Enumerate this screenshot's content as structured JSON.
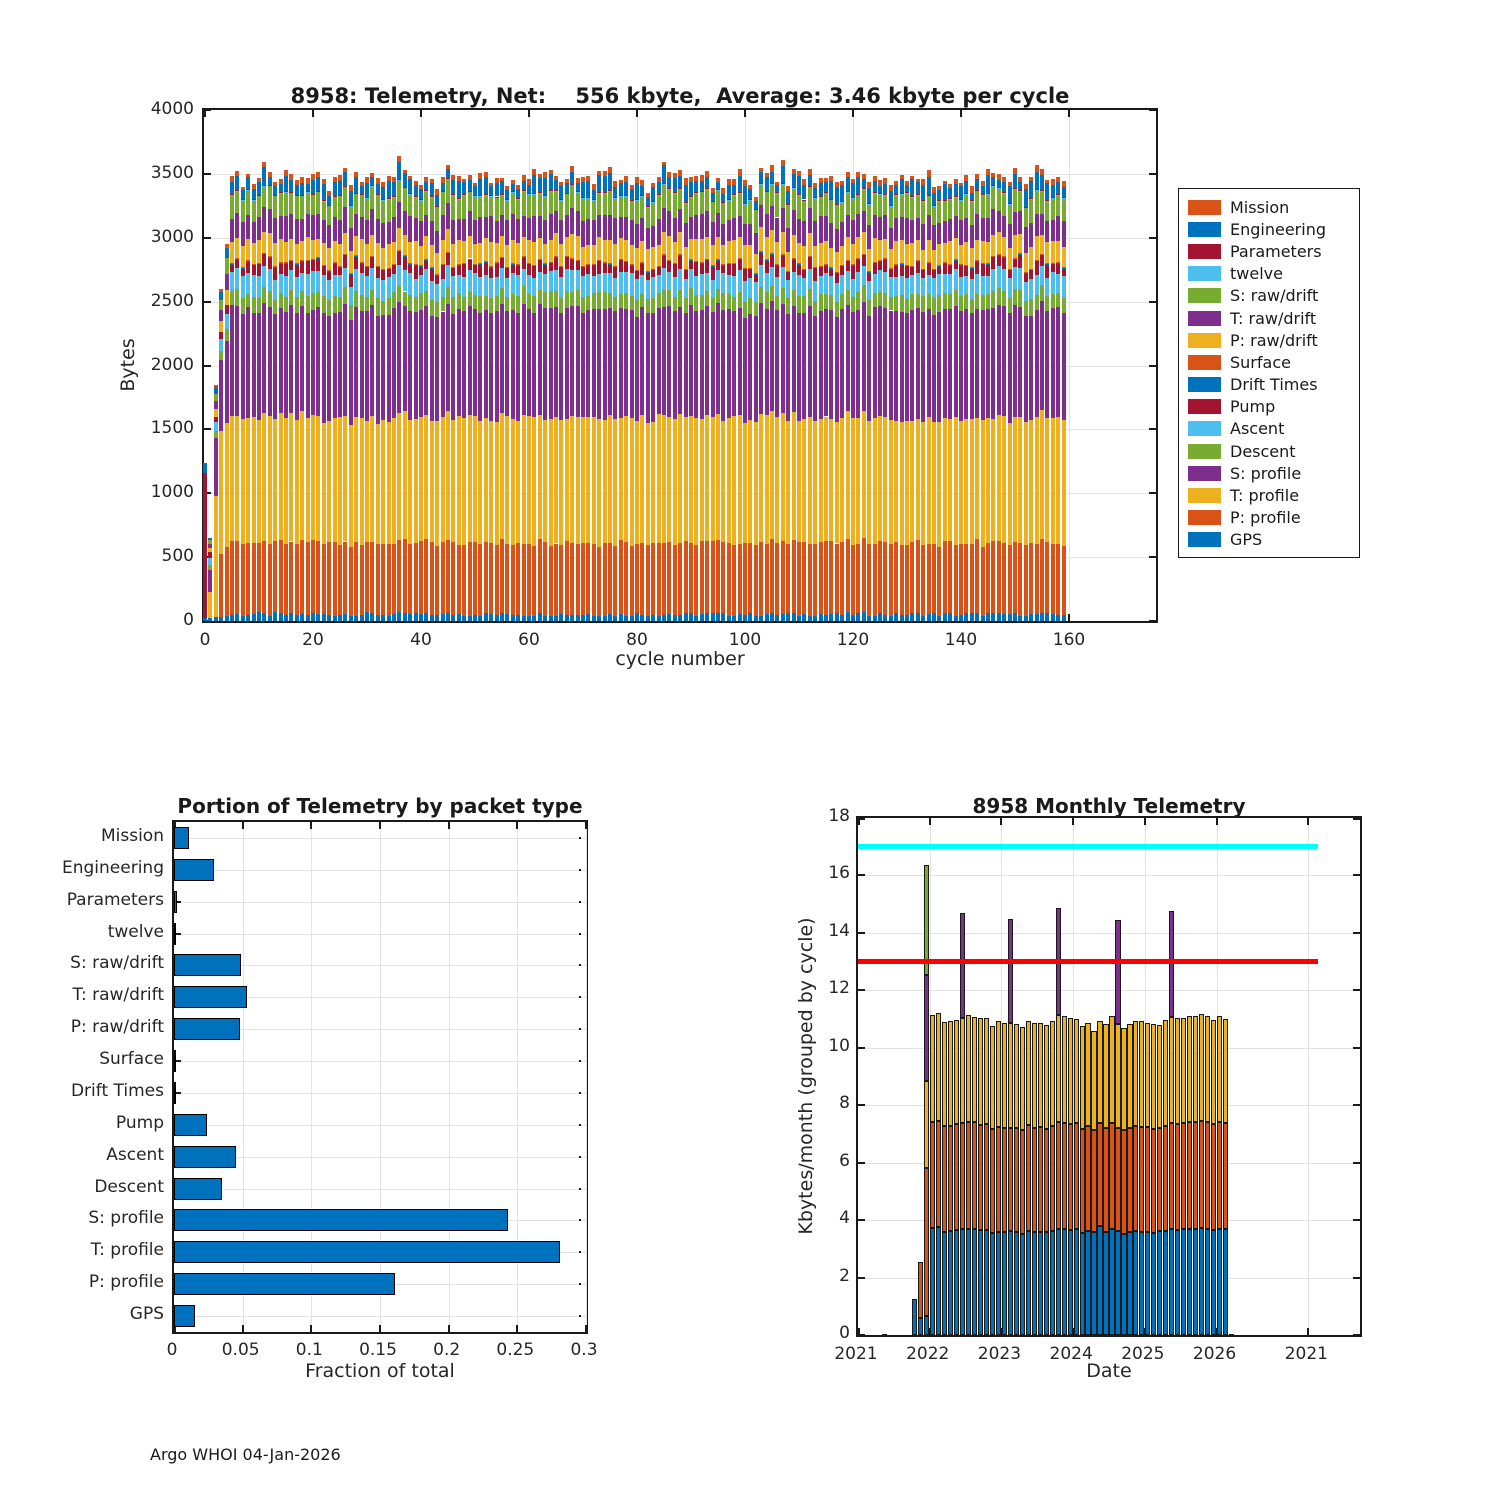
{
  "page": {
    "footer": "Argo WHOI 04-Jan-2026",
    "background": "#FFFFFF"
  },
  "palette": {
    "blue": "#0072BD",
    "orange": "#D95319",
    "yellow": "#EDB120",
    "purple": "#7E2F8E",
    "green": "#77AC30",
    "lightblue": "#4DBEEE",
    "darkred": "#A2142F",
    "cyan_line": "#00FFFF",
    "red_line": "#FF0000",
    "grid": "#E3E3E3",
    "axis": "#1A1A1A",
    "tick_text": "#262626"
  },
  "chart_data": [
    {
      "id": "telemetry-by-cycle",
      "type": "stacked-bar",
      "title": "8958: Telemetry, Net:    556 kbyte,  Average: 3.46 kbyte per cycle",
      "xlabel": "cycle number",
      "ylabel": "Bytes",
      "xlim": [
        0,
        176
      ],
      "ylim": [
        0,
        4000
      ],
      "xticks": [
        0,
        20,
        40,
        60,
        80,
        100,
        120,
        140,
        160
      ],
      "yticks": [
        0,
        500,
        1000,
        1500,
        2000,
        2500,
        3000,
        3500,
        4000
      ],
      "grid": true,
      "n_cycles": 160,
      "legend_top_to_bottom": [
        {
          "label": "Mission",
          "color": "#D95319"
        },
        {
          "label": "Engineering",
          "color": "#0072BD"
        },
        {
          "label": "Parameters",
          "color": "#A2142F"
        },
        {
          "label": "twelve",
          "color": "#4DBEEE"
        },
        {
          "label": "S: raw/drift",
          "color": "#77AC30"
        },
        {
          "label": "T: raw/drift",
          "color": "#7E2F8E"
        },
        {
          "label": "P: raw/drift",
          "color": "#EDB120"
        },
        {
          "label": "Surface",
          "color": "#D95319"
        },
        {
          "label": "Drift Times",
          "color": "#0072BD"
        },
        {
          "label": "Pump",
          "color": "#A2142F"
        },
        {
          "label": "Ascent",
          "color": "#4DBEEE"
        },
        {
          "label": "Descent",
          "color": "#77AC30"
        },
        {
          "label": "S: profile",
          "color": "#7E2F8E"
        },
        {
          "label": "T: profile",
          "color": "#EDB120"
        },
        {
          "label": "P: profile",
          "color": "#D95319"
        },
        {
          "label": "GPS",
          "color": "#0072BD"
        }
      ],
      "stack_bottom_to_top": [
        "GPS",
        "P: profile",
        "T: profile",
        "S: profile",
        "Descent",
        "Ascent",
        "Pump",
        "Drift Times",
        "Surface",
        "P: raw/drift",
        "T: raw/drift",
        "S: raw/drift",
        "twelve",
        "Parameters",
        "Engineering",
        "Mission"
      ],
      "mean_bytes_per_cycle": {
        "GPS": 52,
        "P: profile": 560,
        "T: profile": 977,
        "S: profile": 844,
        "Descent": 122,
        "Ascent": 156,
        "Pump": 83,
        "Drift Times": 4,
        "Surface": 4,
        "P: raw/drift": 167,
        "T: raw/drift": 184,
        "S: raw/drift": 170,
        "twelve": 2,
        "Parameters": 6,
        "Engineering": 101,
        "Mission": 38
      },
      "initial_cycles": [
        {
          "GPS": 25,
          "Parameters": 1130,
          "Engineering": 80
        },
        {
          "GPS": 20,
          "T: profile": 210,
          "S: profile": 170,
          "Descent": 35,
          "Ascent": 60,
          "Pump": 45,
          "P: raw/drift": 30,
          "T: raw/drift": 35,
          "S: raw/drift": 30,
          "Engineering": 15
        },
        {
          "GPS": 30,
          "T: profile": 950,
          "S: profile": 450,
          "Descent": 55,
          "Ascent": 70,
          "Pump": 45,
          "P: raw/drift": 60,
          "T: raw/drift": 65,
          "S: raw/drift": 55,
          "Engineering": 50,
          "Mission": 20
        },
        {
          "GPS": 35,
          "P: profile": 490,
          "T: profile": 960,
          "S: profile": 560,
          "Descent": 70,
          "Ascent": 90,
          "Pump": 55,
          "P: raw/drift": 85,
          "T: raw/drift": 90,
          "S: raw/drift": 80,
          "Engineering": 60,
          "Mission": 25
        },
        {
          "GPS": 40,
          "P: profile": 540,
          "T: profile": 970,
          "S: profile": 640,
          "Descent": 95,
          "Ascent": 120,
          "Pump": 65,
          "P: raw/drift": 120,
          "T: raw/drift": 130,
          "S: raw/drift": 120,
          "Engineering": 80,
          "Mission": 30
        }
      ]
    },
    {
      "id": "portion-by-packet-type",
      "type": "bar-horizontal",
      "title": "Portion of Telemetry by packet type",
      "xlabel": "Fraction of total",
      "categories": [
        "Mission",
        "Engineering",
        "Parameters",
        "twelve",
        "S: raw/drift",
        "T: raw/drift",
        "P: raw/drift",
        "Surface",
        "Drift Times",
        "Pump",
        "Ascent",
        "Descent",
        "S: profile",
        "T: profile",
        "P: profile",
        "GPS"
      ],
      "values": [
        0.011,
        0.029,
        0.002,
        0.0005,
        0.049,
        0.053,
        0.048,
        0.001,
        0.001,
        0.024,
        0.045,
        0.035,
        0.243,
        0.281,
        0.161,
        0.015
      ],
      "xlim": [
        0,
        0.3
      ],
      "xticks": [
        0,
        0.05,
        0.1,
        0.15,
        0.2,
        0.25,
        0.3
      ],
      "xtick_labels": [
        "0",
        "0.05",
        "0.1",
        "0.15",
        "0.2",
        "0.25",
        "0.3"
      ],
      "bar_color": "#0072BD",
      "grid": true
    },
    {
      "id": "monthly-telemetry",
      "type": "stacked-bar",
      "title": "8958 Monthly Telemetry",
      "xlabel": "Date",
      "ylabel": "Kbytes/month (grouped by cycle)",
      "ylim": [
        0,
        18
      ],
      "yticks": [
        0,
        2,
        4,
        6,
        8,
        10,
        12,
        14,
        16,
        18
      ],
      "xticks": [
        {
          "label": "2021",
          "year": 2021
        },
        {
          "label": "2022",
          "year": 2022
        },
        {
          "label": "2023",
          "year": 2023
        },
        {
          "label": "2024",
          "year": 2024
        },
        {
          "label": "2025",
          "year": 2025
        },
        {
          "label": "2026",
          "year": 2026
        },
        {
          "label": "2021",
          "year": 2027.28
        }
      ],
      "xlim_years": [
        2021,
        2028
      ],
      "grid": true,
      "segment_color_cycle": [
        "#0072BD",
        "#D95319",
        "#EDB120",
        "#7E2F8E",
        "#77AC30"
      ],
      "hlines": [
        {
          "y": 17,
          "color": "#00FFFF",
          "from_year": 2021,
          "to_year": 2027.42
        },
        {
          "y": 13,
          "color": "#FF0000",
          "from_year": 2021,
          "to_year": 2027.42
        }
      ],
      "months": [
        {
          "d": "2021-05",
          "c": [
            0.03
          ]
        },
        {
          "d": "2021-10",
          "c": [
            1.25
          ]
        },
        {
          "d": "2021-11",
          "c": [
            0.6,
            1.95
          ]
        },
        {
          "d": "2021-12",
          "c": [
            0.65,
            5.15,
            3.05,
            3.7,
            3.8
          ]
        },
        {
          "d": "2022-01",
          "c": [
            3.72,
            3.7,
            3.73
          ]
        },
        {
          "d": "2022-02",
          "c": [
            3.75,
            3.7,
            3.75
          ]
        },
        {
          "d": "2022-03",
          "c": [
            3.6,
            3.68,
            3.62
          ]
        },
        {
          "d": "2022-04",
          "c": [
            3.62,
            3.65,
            3.66
          ]
        },
        {
          "d": "2022-05",
          "c": [
            3.65,
            3.7,
            3.63
          ]
        },
        {
          "d": "2022-06",
          "c": [
            3.7,
            3.68,
            3.66,
            3.66
          ]
        },
        {
          "d": "2022-07",
          "c": [
            3.7,
            3.72,
            3.73
          ]
        },
        {
          "d": "2022-08",
          "c": [
            3.68,
            3.72,
            3.68
          ]
        },
        {
          "d": "2022-09",
          "c": [
            3.65,
            3.66,
            3.72
          ]
        },
        {
          "d": "2022-10",
          "c": [
            3.66,
            3.7,
            3.68
          ]
        },
        {
          "d": "2022-11",
          "c": [
            3.55,
            3.62,
            3.58
          ]
        },
        {
          "d": "2022-12",
          "c": [
            3.6,
            3.65,
            3.68
          ]
        },
        {
          "d": "2023-01",
          "c": [
            3.6,
            3.62,
            3.63
          ]
        },
        {
          "d": "2023-02",
          "c": [
            3.62,
            3.6,
            3.63,
            3.65
          ]
        },
        {
          "d": "2023-03",
          "c": [
            3.6,
            3.62,
            3.6
          ]
        },
        {
          "d": "2023-04",
          "c": [
            3.52,
            3.6,
            3.6
          ]
        },
        {
          "d": "2023-05",
          "c": [
            3.62,
            3.68,
            3.64
          ]
        },
        {
          "d": "2023-06",
          "c": [
            3.58,
            3.64,
            3.66
          ]
        },
        {
          "d": "2023-07",
          "c": [
            3.6,
            3.63,
            3.63
          ]
        },
        {
          "d": "2023-08",
          "c": [
            3.58,
            3.6,
            3.6
          ]
        },
        {
          "d": "2023-09",
          "c": [
            3.62,
            3.66,
            3.64
          ]
        },
        {
          "d": "2023-10",
          "c": [
            3.7,
            3.72,
            3.71,
            3.72
          ]
        },
        {
          "d": "2023-11",
          "c": [
            3.68,
            3.7,
            3.72
          ]
        },
        {
          "d": "2023-12",
          "c": [
            3.66,
            3.7,
            3.68
          ]
        },
        {
          "d": "2024-01",
          "c": [
            3.7,
            3.68,
            3.62
          ]
        },
        {
          "d": "2024-02",
          "c": [
            3.55,
            3.62,
            3.58
          ]
        },
        {
          "d": "2024-03",
          "c": [
            3.62,
            3.66,
            3.6
          ]
        },
        {
          "d": "2024-04",
          "c": [
            3.6,
            3.55,
            3.45
          ]
        },
        {
          "d": "2024-05",
          "c": [
            3.78,
            3.6,
            3.55
          ]
        },
        {
          "d": "2024-06",
          "c": [
            3.6,
            3.62,
            3.6
          ]
        },
        {
          "d": "2024-07",
          "c": [
            3.68,
            3.7,
            3.72
          ]
        },
        {
          "d": "2024-08",
          "c": [
            3.62,
            3.6,
            3.61,
            3.62
          ]
        },
        {
          "d": "2024-09",
          "c": [
            3.52,
            3.6,
            3.58
          ]
        },
        {
          "d": "2024-10",
          "c": [
            3.6,
            3.62,
            3.62
          ]
        },
        {
          "d": "2024-11",
          "c": [
            3.62,
            3.65,
            3.66
          ]
        },
        {
          "d": "2024-12",
          "c": [
            3.58,
            3.66,
            3.7
          ]
        },
        {
          "d": "2025-01",
          "c": [
            3.6,
            3.63,
            3.62
          ]
        },
        {
          "d": "2025-02",
          "c": [
            3.55,
            3.62,
            3.65
          ]
        },
        {
          "d": "2025-03",
          "c": [
            3.62,
            3.6,
            3.58
          ]
        },
        {
          "d": "2025-04",
          "c": [
            3.62,
            3.66,
            3.7
          ]
        },
        {
          "d": "2025-05",
          "c": [
            3.68,
            3.7,
            3.68,
            3.69
          ]
        },
        {
          "d": "2025-06",
          "c": [
            3.65,
            3.7,
            3.68
          ]
        },
        {
          "d": "2025-07",
          "c": [
            3.68,
            3.7,
            3.67
          ]
        },
        {
          "d": "2025-08",
          "c": [
            3.7,
            3.72,
            3.7
          ]
        },
        {
          "d": "2025-09",
          "c": [
            3.68,
            3.73,
            3.7
          ]
        },
        {
          "d": "2025-10",
          "c": [
            3.72,
            3.73,
            3.72
          ]
        },
        {
          "d": "2025-11",
          "c": [
            3.7,
            3.72,
            3.7
          ]
        },
        {
          "d": "2025-12",
          "c": [
            3.66,
            3.68,
            3.64
          ]
        },
        {
          "d": "2026-01",
          "c": [
            3.68,
            3.72,
            3.7
          ]
        },
        {
          "d": "2026-02",
          "c": [
            3.68,
            3.7,
            3.62
          ]
        },
        {
          "d": "2026-03",
          "c": [
            0.02
          ]
        }
      ]
    }
  ]
}
